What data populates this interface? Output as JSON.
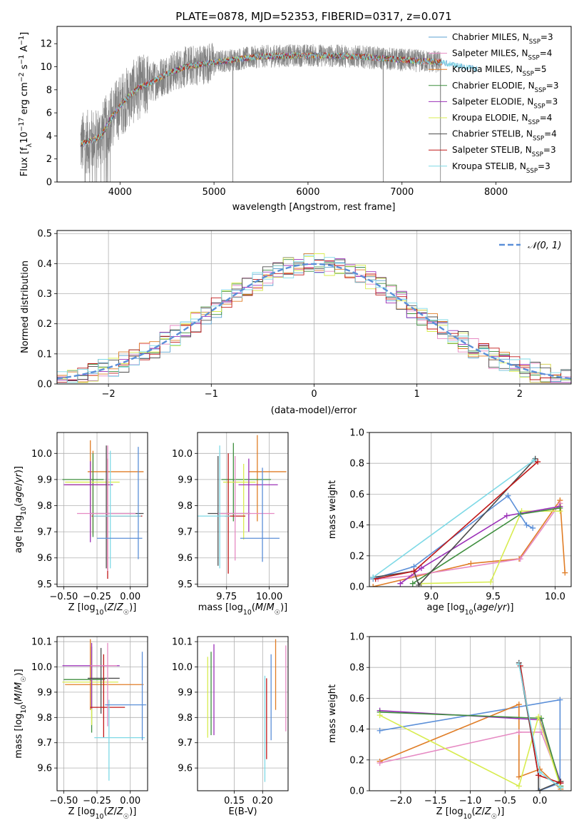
{
  "chart_data": [
    {
      "id": "spectrum",
      "type": "line",
      "title": "PLATE=0878, MJD=52353, FIBERID=0317, z=0.071",
      "xlabel": "wavelength [Angstrom, rest frame]",
      "ylabel": "Flux [fλ10⁻¹⁷ erg cm⁻² s⁻¹ A⁻¹]",
      "xlim": [
        3330,
        8800
      ],
      "ylim": [
        0,
        13.5
      ],
      "xticks": [
        4000,
        5000,
        6000,
        7000,
        8000
      ],
      "yticks": [
        0,
        2,
        4,
        6,
        8,
        10,
        12
      ],
      "legend_position": "right",
      "data_color": "#808080",
      "data_range": [
        3580,
        7420
      ],
      "data_profile": {
        "x": [
          3580,
          3700,
          3800,
          3900,
          4000,
          4100,
          4200,
          4300,
          4500,
          4700,
          5000,
          5500,
          6000,
          6500,
          7000,
          7400,
          7800
        ],
        "y": [
          3.3,
          3.6,
          4.0,
          5.5,
          6.6,
          7.5,
          8.2,
          8.5,
          9.4,
          10.0,
          10.4,
          10.9,
          11.0,
          10.9,
          10.6,
          10.4,
          9.8
        ]
      },
      "series": [
        {
          "label": "Chabrier MILES, N",
          "sub": "SSP",
          "suffix": "=3",
          "color": "#5ba2d0"
        },
        {
          "label": "Salpeter MILES, N",
          "sub": "SSP",
          "suffix": "=4",
          "color": "#e68ac3"
        },
        {
          "label": "Kroupa MILES, N",
          "sub": "SSP",
          "suffix": "=5",
          "color": "#e07d26"
        },
        {
          "label": "Chabrier ELODIE, N",
          "sub": "SSP",
          "suffix": "=3",
          "color": "#3f8f3f"
        },
        {
          "label": "Salpeter ELODIE, N",
          "sub": "SSP",
          "suffix": "=3",
          "color": "#9b30b8"
        },
        {
          "label": "Kroupa ELODIE, N",
          "sub": "SSP",
          "suffix": "=4",
          "color": "#d8ec50"
        },
        {
          "label": "Chabrier STELIB, N",
          "sub": "SSP",
          "suffix": "=4",
          "color": "#4d4d4d"
        },
        {
          "label": "Salpeter STELIB, N",
          "sub": "SSP",
          "suffix": "=3",
          "color": "#c01818"
        },
        {
          "label": "Kroupa STELIB, N",
          "sub": "SSP",
          "suffix": "=3",
          "color": "#7ed9e6"
        }
      ]
    },
    {
      "id": "residuals",
      "type": "line",
      "xlabel": "(data-model)/error",
      "ylabel": "Normed distribution",
      "xlim": [
        -2.5,
        2.5
      ],
      "ylim": [
        0,
        0.51
      ],
      "xticks": [
        -2,
        -1,
        0,
        1,
        2
      ],
      "xticklabels": [
        "−2",
        "−1",
        "0",
        "1",
        "2"
      ],
      "yticks": [
        0,
        0.1,
        0.2,
        0.3,
        0.4,
        0.5
      ],
      "yticklabels": [
        "0.0",
        "0.1",
        "0.2",
        "0.3",
        "0.4",
        "0.5"
      ],
      "grid": true,
      "legend_position": "top-right",
      "gaussian": {
        "label": "𝒩(0, 1)",
        "color": "#5b8fd8",
        "mu": 0,
        "sigma": 1
      },
      "bins": {
        "start": -2.5,
        "width": 0.1,
        "count": 50
      }
    },
    {
      "id": "age_vs_Z",
      "type": "scatter",
      "xlabel": "Z [log10(Z/Z☉)]",
      "ylabel": "age  [log10(age/yr)]",
      "xlim": [
        -0.55,
        0.13
      ],
      "ylim": [
        9.49,
        10.08
      ],
      "xticks": [
        -0.5,
        -0.25,
        0.0
      ],
      "xticklabels": [
        "−0.50",
        "−0.25",
        "0.00"
      ],
      "yticks": [
        9.5,
        9.6,
        9.7,
        9.8,
        9.9,
        10.0
      ],
      "yticklabels": [
        "9.5",
        "9.6",
        "9.7",
        "9.8",
        "9.9",
        "10.0"
      ],
      "grid": true,
      "points": [
        {
          "x": -0.28,
          "y": 9.88,
          "xerr": [
            0.21,
            0.12
          ],
          "yerr": [
            0.19,
            0.13
          ],
          "color": "#e07d26"
        },
        {
          "x": -0.3,
          "y": 9.93,
          "xerr": [
            0.02,
            0.4
          ],
          "yerr": [
            0.25,
            0.12
          ],
          "color": "#e07d26"
        },
        {
          "x": -0.28,
          "y": 9.9,
          "xerr": [
            0.23,
            0.08
          ],
          "yerr": [
            0.22,
            0.1
          ],
          "color": "#3f8f3f"
        },
        {
          "x": -0.3,
          "y": 9.89,
          "xerr": [
            0.19,
            0.22
          ],
          "yerr": [
            0.2,
            0.06
          ],
          "color": "#d8ec50"
        },
        {
          "x": -0.3,
          "y": 9.88,
          "xerr": [
            0.2,
            0.17
          ],
          "yerr": [
            0.22,
            0.09
          ],
          "color": "#9b30b8"
        },
        {
          "x": -0.18,
          "y": 9.77,
          "xerr": [
            0.12,
            0.28
          ],
          "yerr": [
            0.21,
            0.26
          ],
          "color": "#4d4d4d"
        },
        {
          "x": -0.17,
          "y": 9.76,
          "xerr": [
            0.12,
            0.26
          ],
          "yerr": [
            0.24,
            0.22
          ],
          "color": "#c01818"
        },
        {
          "x": -0.17,
          "y": 9.77,
          "xerr": [
            0.23,
            0.21
          ],
          "yerr": [
            0.22,
            0.26
          ],
          "color": "#e68ac3"
        },
        {
          "x": -0.15,
          "y": 9.76,
          "xerr": [
            0.13,
            0.23
          ],
          "yerr": [
            0.2,
            0.25
          ],
          "color": "#7ed9e6"
        },
        {
          "x": 0.06,
          "y": 9.675,
          "xerr": [
            0.31,
            0.03
          ],
          "yerr": [
            0.08,
            0.35
          ],
          "color": "#5b8fd8"
        }
      ]
    },
    {
      "id": "age_vs_mass",
      "type": "scatter",
      "xlabel": "mass [log10(M/M☉)]",
      "ylabel": "",
      "xlim": [
        9.58,
        10.11
      ],
      "ylim": [
        9.49,
        10.08
      ],
      "xticks": [
        9.75,
        10.0
      ],
      "xticklabels": [
        "9.75",
        "10.00"
      ],
      "yticks": [
        9.5,
        9.6,
        9.7,
        9.8,
        9.9,
        10.0
      ],
      "yticklabels": [
        "9.5",
        "9.6",
        "9.7",
        "9.8",
        "9.9",
        "10.0"
      ],
      "grid": true,
      "points": [
        {
          "x": 9.93,
          "y": 9.93,
          "xerr": [
            0.05,
            0.17
          ],
          "yerr": [
            0.19,
            0.14
          ],
          "color": "#e07d26"
        },
        {
          "x": 9.79,
          "y": 9.9,
          "xerr": [
            0.07,
            0.22
          ],
          "yerr": [
            0.16,
            0.14
          ],
          "color": "#3f8f3f"
        },
        {
          "x": 9.85,
          "y": 9.89,
          "xerr": [
            0.12,
            0.07
          ],
          "yerr": [
            0.22,
            0.07
          ],
          "color": "#d8ec50"
        },
        {
          "x": 9.88,
          "y": 9.88,
          "xerr": [
            0.06,
            0.17
          ],
          "yerr": [
            0.18,
            0.1
          ],
          "color": "#9b30b8"
        },
        {
          "x": 9.7,
          "y": 9.77,
          "xerr": [
            0.06,
            0.19
          ],
          "yerr": [
            0.2,
            0.22
          ],
          "color": "#4d4d4d"
        },
        {
          "x": 9.76,
          "y": 9.76,
          "xerr": [
            0.02,
            0.1
          ],
          "yerr": [
            0.22,
            0.24
          ],
          "color": "#c01818"
        },
        {
          "x": 9.8,
          "y": 9.77,
          "xerr": [
            0.1,
            0.23
          ],
          "yerr": [
            0.18,
            0.22
          ],
          "color": "#e68ac3"
        },
        {
          "x": 9.71,
          "y": 9.76,
          "xerr": [
            0.16,
            0.06
          ],
          "yerr": [
            0.2,
            0.27
          ],
          "color": "#7ed9e6"
        },
        {
          "x": 9.96,
          "y": 9.675,
          "xerr": [
            0.13,
            0.1
          ],
          "yerr": [
            0.09,
            0.27
          ],
          "color": "#5b8fd8"
        }
      ]
    },
    {
      "id": "weight_vs_age",
      "type": "line",
      "xlabel": "age  [log10(age/yr)]",
      "ylabel": "mass weight",
      "xlim": [
        8.5,
        10.13
      ],
      "ylim": [
        0,
        1.0
      ],
      "xticks": [
        9.0,
        9.5,
        10.0
      ],
      "xticklabels": [
        "9.0",
        "9.5",
        "10.0"
      ],
      "yticks": [
        0,
        0.2,
        0.4,
        0.6,
        0.8,
        1.0
      ],
      "yticklabels": [
        "0.0",
        "0.2",
        "0.4",
        "0.6",
        "0.8",
        "1.0"
      ],
      "grid": true,
      "series": [
        {
          "color": "#e07d26",
          "x": [
            8.53,
            9.32,
            9.71,
            10.04,
            10.08
          ],
          "y": [
            0.0,
            0.15,
            0.18,
            0.56,
            0.09
          ]
        },
        {
          "color": "#e68ac3",
          "x": [
            8.57,
            8.84,
            9.72,
            10.04
          ],
          "y": [
            0.05,
            0.07,
            0.18,
            0.54
          ]
        },
        {
          "color": "#d8ec50",
          "x": [
            8.92,
            9.48,
            9.73,
            10.04
          ],
          "y": [
            0.02,
            0.03,
            0.49,
            0.49
          ]
        },
        {
          "color": "#9b30b8",
          "x": [
            8.75,
            8.92,
            9.61,
            10.04
          ],
          "y": [
            0.02,
            0.12,
            0.46,
            0.52
          ]
        },
        {
          "color": "#3f8f3f",
          "x": [
            8.85,
            9.72,
            10.04
          ],
          "y": [
            0.02,
            0.47,
            0.51
          ]
        },
        {
          "color": "#5b8fd8",
          "x": [
            8.53,
            8.86,
            9.62,
            9.77,
            9.82
          ],
          "y": [
            0.05,
            0.13,
            0.59,
            0.4,
            0.38
          ]
        },
        {
          "color": "#4d4d4d",
          "x": [
            8.53,
            8.86,
            8.9,
            9.84
          ],
          "y": [
            0.06,
            0.1,
            0.01,
            0.83
          ]
        },
        {
          "color": "#c01818",
          "x": [
            8.55,
            8.86,
            9.86
          ],
          "y": [
            0.05,
            0.1,
            0.81
          ]
        },
        {
          "color": "#7ed9e6",
          "x": [
            8.53,
            9.83
          ],
          "y": [
            0.06,
            0.82
          ]
        }
      ]
    },
    {
      "id": "mass_vs_Z",
      "type": "scatter",
      "xlabel": "Z [log10(Z/Z☉)]",
      "ylabel": "mass [log10(M/M☉)]",
      "xlim": [
        -0.55,
        0.13
      ],
      "ylim": [
        9.51,
        10.12
      ],
      "xticks": [
        -0.5,
        -0.25,
        0.0
      ],
      "xticklabels": [
        "−0.50",
        "−0.25",
        "0.00"
      ],
      "yticks": [
        9.6,
        9.7,
        9.8,
        9.9,
        10.0,
        10.1
      ],
      "yticklabels": [
        "9.6",
        "9.7",
        "9.8",
        "9.9",
        "10.0",
        "10.1"
      ],
      "grid": true,
      "points": [
        {
          "x": -0.3,
          "y": 9.93,
          "xerr": [
            0.19,
            0.4
          ],
          "yerr": [
            0.1,
            0.18
          ],
          "color": "#e07d26"
        },
        {
          "x": -0.29,
          "y": 9.95,
          "xerr": [
            0.21,
            0.1
          ],
          "yerr": [
            0.21,
            0.13
          ],
          "color": "#3f8f3f"
        },
        {
          "x": -0.29,
          "y": 9.94,
          "xerr": [
            0.22,
            0.2
          ],
          "yerr": [
            0.17,
            0.11
          ],
          "color": "#d8ec50"
        },
        {
          "x": -0.29,
          "y": 10.005,
          "xerr": [
            0.22,
            0.21
          ],
          "yerr": [
            0.17,
            0.09
          ],
          "color": "#9b30b8"
        },
        {
          "x": -0.22,
          "y": 9.955,
          "xerr": [
            0.1,
            0.14
          ],
          "yerr": [
            0.14,
            0.12
          ],
          "color": "#4d4d4d"
        },
        {
          "x": -0.2,
          "y": 9.84,
          "xerr": [
            0.1,
            0.16
          ],
          "yerr": [
            0.12,
            0.21
          ],
          "color": "#c01818"
        },
        {
          "x": -0.17,
          "y": 10.005,
          "xerr": [
            0.13,
            0.07
          ],
          "yerr": [
            0.24,
            0.09
          ],
          "color": "#e68ac3"
        },
        {
          "x": -0.16,
          "y": 9.72,
          "xerr": [
            0.11,
            0.27
          ],
          "yerr": [
            0.17,
            0.15
          ],
          "color": "#7ed9e6"
        },
        {
          "x": 0.09,
          "y": 9.85,
          "xerr": [
            0.28,
            0.03
          ],
          "yerr": [
            0.14,
            0.21
          ],
          "color": "#5b8fd8"
        }
      ]
    },
    {
      "id": "mass_vs_EBV",
      "type": "scatter",
      "xlabel": "E(B-V)",
      "ylabel": "",
      "xlim": [
        0.085,
        0.245
      ],
      "ylim": [
        9.51,
        10.12
      ],
      "xticks": [
        0.15,
        0.2
      ],
      "xticklabels": [
        "0.15",
        "0.20"
      ],
      "yticks": [
        9.6,
        9.7,
        9.8,
        9.9,
        10.0,
        10.1
      ],
      "yticklabels": [
        "9.6",
        "9.7",
        "9.8",
        "9.9",
        "10.0",
        "10.1"
      ],
      "grid": true,
      "points": [
        {
          "x": 0.103,
          "y": 9.88,
          "yerr": [
            0.16,
            0.16
          ],
          "color": "#d8ec50"
        },
        {
          "x": 0.109,
          "y": 9.88,
          "yerr": [
            0.15,
            0.18
          ],
          "color": "#3f8f3f"
        },
        {
          "x": 0.114,
          "y": 9.91,
          "yerr": [
            0.18,
            0.18
          ],
          "color": "#9b30b8"
        },
        {
          "x": 0.204,
          "y": 9.755,
          "yerr": [
            0.21,
            0.21
          ],
          "color": "#7ed9e6"
        },
        {
          "x": 0.207,
          "y": 9.875,
          "yerr": [
            0.24,
            0.08
          ],
          "color": "#c01818"
        },
        {
          "x": 0.215,
          "y": 9.88,
          "yerr": [
            0.17,
            0.17
          ],
          "color": "#5b8fd8"
        },
        {
          "x": 0.223,
          "y": 9.98,
          "yerr": [
            0.15,
            0.13
          ],
          "color": "#e07d26"
        },
        {
          "x": 0.241,
          "y": 9.915,
          "yerr": [
            0.17,
            0.17
          ],
          "color": "#e68ac3"
        }
      ]
    },
    {
      "id": "weight_vs_Z",
      "type": "line",
      "xlabel": "Z [log10(Z/Z☉)]",
      "ylabel": "mass weight",
      "xlim": [
        -2.45,
        0.45
      ],
      "ylim": [
        0,
        1.0
      ],
      "xticks": [
        -2.0,
        -1.5,
        -1.0,
        -0.5,
        0.0
      ],
      "xticklabels": [
        "−2.0",
        "−1.5",
        "−1.0",
        "−0.5",
        "0.0"
      ],
      "yticks": [
        0,
        0.2,
        0.4,
        0.6,
        0.8,
        1.0
      ],
      "yticklabels": [
        "0.0",
        "0.2",
        "0.4",
        "0.6",
        "0.8",
        "1.0"
      ],
      "grid": true,
      "series": [
        {
          "color": "#5b8fd8",
          "x": [
            -2.3,
            0.29,
            0.29,
            -0.01
          ],
          "y": [
            0.39,
            0.59,
            0.05,
            0.0
          ]
        },
        {
          "color": "#e07d26",
          "x": [
            -2.3,
            -0.3,
            -0.3,
            0.0,
            0.3
          ],
          "y": [
            0.19,
            0.56,
            0.09,
            0.14,
            0.01
          ]
        },
        {
          "color": "#e68ac3",
          "x": [
            -2.3,
            -0.3,
            0.02,
            0.3
          ],
          "y": [
            0.18,
            0.38,
            0.38,
            0.05
          ]
        },
        {
          "color": "#9b30b8",
          "x": [
            -2.3,
            0.0,
            0.3
          ],
          "y": [
            0.52,
            0.46,
            0.05
          ]
        },
        {
          "color": "#3f8f3f",
          "x": [
            -2.3,
            0.02,
            0.3
          ],
          "y": [
            0.51,
            0.47,
            0.03
          ]
        },
        {
          "color": "#d8ec50",
          "x": [
            -2.3,
            -0.3,
            -0.02,
            0.3
          ],
          "y": [
            0.49,
            0.03,
            0.48,
            0.02
          ]
        },
        {
          "color": "#4d4d4d",
          "x": [
            -0.3,
            -0.02,
            -0.02,
            0.3
          ],
          "y": [
            0.83,
            0.1,
            0.0,
            0.06
          ]
        },
        {
          "color": "#c01818",
          "x": [
            -0.28,
            -0.02,
            0.3
          ],
          "y": [
            0.81,
            0.1,
            0.05
          ]
        },
        {
          "color": "#7ed9e6",
          "x": [
            -0.3,
            0.0,
            0.3
          ],
          "y": [
            0.82,
            0.12,
            0.02
          ]
        }
      ]
    }
  ]
}
